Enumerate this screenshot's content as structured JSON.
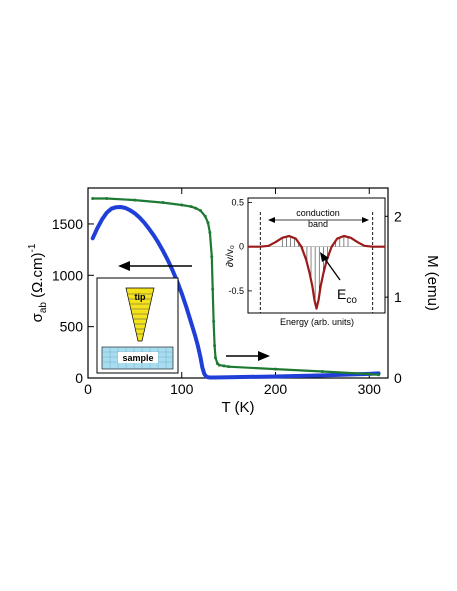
{
  "chart_data": [
    {
      "type": "line",
      "xlabel": "T (K)",
      "ylabel_left": {
        "sym": "σ",
        "sub": "ab",
        "unit": " (Ω.cm)",
        "sup": "-1"
      },
      "ylabel_right": "M (emu)",
      "xlim": [
        0,
        320
      ],
      "ylim_left": [
        0,
        1850
      ],
      "ylim_right": [
        0,
        2.35
      ],
      "x_ticks": [
        0,
        100,
        200,
        300
      ],
      "x_tick_labels": [
        "0",
        "100",
        "200",
        "300"
      ],
      "y_left_ticks": [
        0,
        500,
        1000,
        1500
      ],
      "y_left_tick_labels": [
        "0",
        "500",
        "1000",
        "1500"
      ],
      "y_right_ticks": [
        0,
        1,
        2
      ],
      "y_right_tick_labels": [
        "0",
        "1",
        "2"
      ],
      "series": [
        {
          "axis": "left",
          "color": "#1f3fd8",
          "x": [
            5,
            10,
            15,
            20,
            25,
            30,
            35,
            40,
            45,
            50,
            55,
            60,
            65,
            70,
            75,
            80,
            85,
            90,
            95,
            100,
            105,
            110,
            114,
            117,
            120,
            122,
            124,
            126,
            128,
            130,
            135,
            150,
            200,
            250,
            300,
            310
          ],
          "y": [
            1360,
            1460,
            1545,
            1610,
            1648,
            1663,
            1665,
            1655,
            1633,
            1603,
            1562,
            1512,
            1455,
            1390,
            1318,
            1238,
            1150,
            1052,
            943,
            822,
            688,
            540,
            420,
            320,
            200,
            100,
            40,
            15,
            8,
            5,
            5,
            8,
            15,
            25,
            40,
            45
          ]
        },
        {
          "axis": "right",
          "color": "#1e7a32",
          "x": [
            5,
            20,
            50,
            80,
            100,
            110,
            115,
            120,
            125,
            128,
            130,
            132,
            133,
            134,
            135,
            136,
            138,
            140,
            145,
            150,
            200,
            250,
            300,
            310
          ],
          "y": [
            2.22,
            2.22,
            2.2,
            2.17,
            2.14,
            2.12,
            2.1,
            2.07,
            2.0,
            1.92,
            1.8,
            1.5,
            1.1,
            0.7,
            0.4,
            0.25,
            0.18,
            0.16,
            0.15,
            0.14,
            0.11,
            0.08,
            0.05,
            0.04
          ]
        }
      ],
      "annotations": {
        "inset_tip_label": "tip",
        "inset_sample_label": "sample"
      }
    },
    {
      "type": "line",
      "xlabel": "Energy (arb. units)",
      "ylabel": "∂v/v₀",
      "xlim": [
        -1,
        1
      ],
      "ylim": [
        -0.75,
        0.55
      ],
      "y_ticks": [
        0.5,
        0,
        -0.5
      ],
      "y_tick_labels": [
        "0.5",
        "0",
        "-0.5"
      ],
      "series": [
        {
          "color": "#9b1a1a",
          "x": [
            -1.0,
            -0.82,
            -0.7,
            -0.6,
            -0.5,
            -0.4,
            -0.3,
            -0.22,
            -0.15,
            -0.1,
            -0.06,
            -0.03,
            0.0,
            0.03,
            0.06,
            0.1,
            0.15,
            0.22,
            0.3,
            0.4,
            0.5,
            0.6,
            0.7,
            0.82,
            1.0
          ],
          "y": [
            0.0,
            0.0,
            0.01,
            0.05,
            0.1,
            0.12,
            0.09,
            0.0,
            -0.15,
            -0.3,
            -0.45,
            -0.6,
            -0.7,
            -0.6,
            -0.45,
            -0.3,
            -0.15,
            0.0,
            0.09,
            0.12,
            0.1,
            0.05,
            0.01,
            0.0,
            0.0
          ]
        }
      ],
      "annotations": {
        "band_label_line1": "conduction",
        "band_label_line2": "band",
        "eco_label": "E",
        "eco_sub": "co"
      }
    }
  ]
}
